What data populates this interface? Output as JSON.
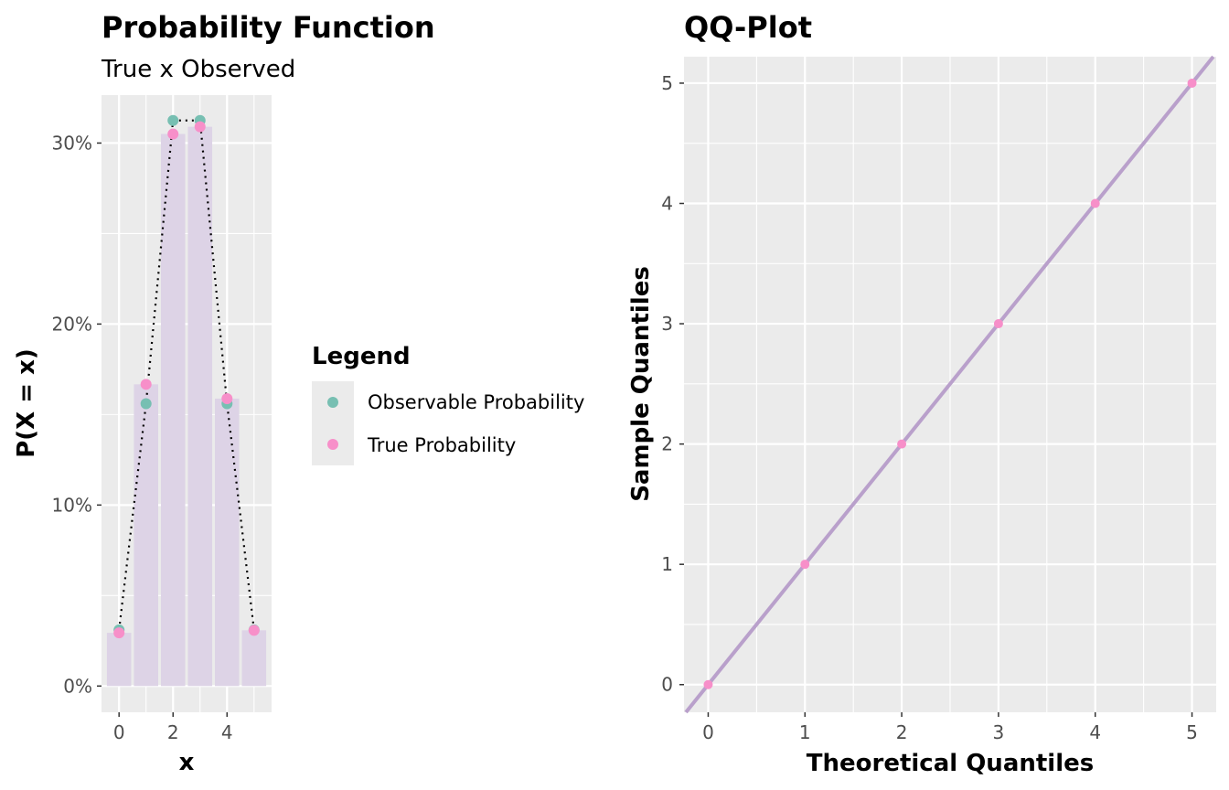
{
  "chart_data": [
    {
      "type": "bar",
      "title": "Probability Function",
      "subtitle": "True x Observed",
      "xlabel": "x",
      "ylabel": "P(X = x)",
      "x": [
        0,
        1,
        2,
        3,
        4,
        5
      ],
      "xlim": [
        -0.65,
        5.65
      ],
      "ylim": [
        -0.0145,
        0.3265
      ],
      "xticks": [
        0,
        2,
        4
      ],
      "xtick_labels": [
        "0",
        "2",
        "4"
      ],
      "yticks": [
        0,
        0.1,
        0.2,
        0.3
      ],
      "ytick_labels": [
        "0%",
        "10%",
        "20%",
        "30%"
      ],
      "grid": true,
      "bar_color": "#ddd3e6",
      "line_style": "dotted",
      "series": [
        {
          "name": "Observable Probability",
          "color": "#77bfb2",
          "values": [
            0.031,
            0.156,
            0.3125,
            0.3125,
            0.156,
            0.031
          ]
        },
        {
          "name": "True Probability",
          "color": "#f78fc9",
          "values": [
            0.0294,
            0.1667,
            0.305,
            0.309,
            0.1588,
            0.0308
          ]
        }
      ],
      "legend": {
        "title": "Legend",
        "position": "right"
      }
    },
    {
      "type": "scatter",
      "title": "QQ-Plot",
      "xlabel": "Theoretical Quantiles",
      "ylabel": "Sample Quantiles",
      "xlim": [
        -0.25,
        5.25
      ],
      "ylim": [
        -0.23,
        5.22
      ],
      "xticks": [
        0,
        1,
        2,
        3,
        4,
        5
      ],
      "xtick_labels": [
        "0",
        "1",
        "2",
        "3",
        "4",
        "5"
      ],
      "yticks": [
        0,
        1,
        2,
        3,
        4,
        5
      ],
      "ytick_labels": [
        "0",
        "1",
        "2",
        "3",
        "4",
        "5"
      ],
      "grid": true,
      "point_color": "#f78fc9",
      "line_color": "#b9a0cb",
      "reference_line": "y = x",
      "points": [
        {
          "x": 0,
          "y": 0
        },
        {
          "x": 1,
          "y": 1
        },
        {
          "x": 2,
          "y": 2
        },
        {
          "x": 3,
          "y": 3
        },
        {
          "x": 4,
          "y": 4
        },
        {
          "x": 5,
          "y": 5
        }
      ]
    }
  ]
}
